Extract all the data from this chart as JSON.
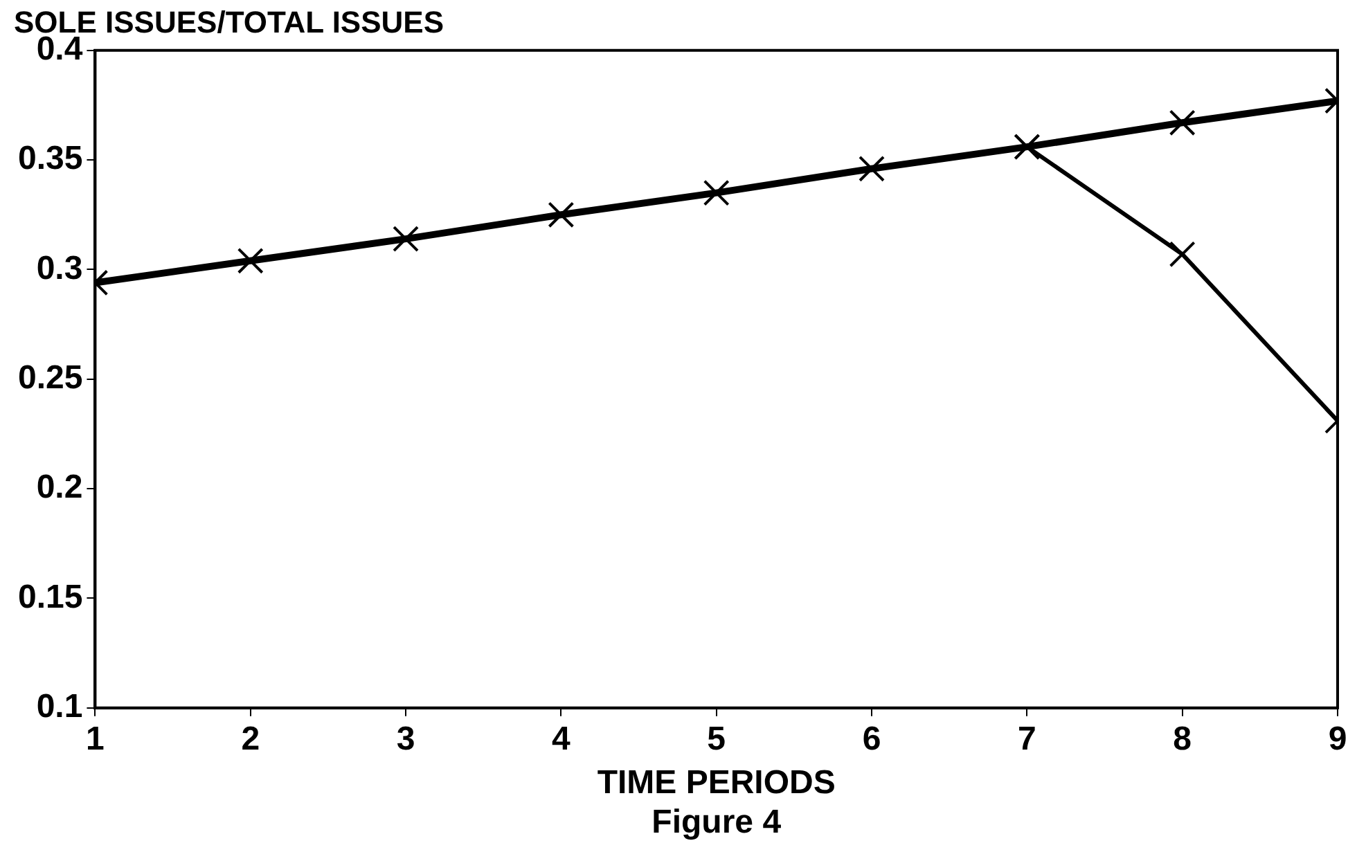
{
  "chart_data": {
    "type": "line",
    "title": "SOLE ISSUES/TOTAL ISSUES",
    "xlabel": "TIME PERIODS",
    "annotations": [
      "Figure 4"
    ],
    "xlim": [
      1,
      9
    ],
    "xticks": [
      1,
      2,
      3,
      4,
      5,
      6,
      7,
      8,
      9
    ],
    "ylim": [
      0.1,
      0.4
    ],
    "yticks": [
      0.1,
      0.15,
      0.2,
      0.25,
      0.3,
      0.35,
      0.4
    ],
    "grid": false,
    "legend": false,
    "marker": "cross",
    "line_style": "solid",
    "series": [
      {
        "color": "#000000",
        "x": [
          1,
          2,
          3,
          4,
          5,
          6,
          7,
          8,
          9
        ],
        "values": [
          0.294,
          0.304,
          0.314,
          0.325,
          0.335,
          0.346,
          0.356,
          0.367,
          0.377
        ]
      },
      {
        "color": "#000000",
        "x": [
          7,
          8,
          9
        ],
        "values": [
          0.356,
          0.307,
          0.231
        ]
      }
    ]
  }
}
